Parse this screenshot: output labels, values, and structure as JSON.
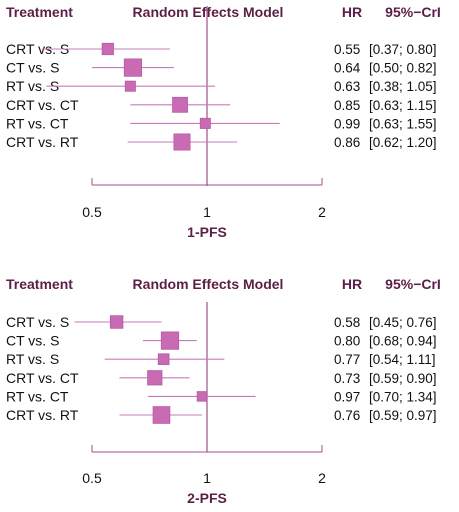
{
  "chart_data": [
    {
      "type": "forest",
      "header": {
        "treatment": "Treatment",
        "model": "Random Effects Model",
        "hr": "HR",
        "cri": "95%−CrI"
      },
      "xlabel": "1-PFS",
      "scale": "log",
      "xlim": [
        0.5,
        2
      ],
      "ticks": [
        0.5,
        1,
        2
      ],
      "tick_labels": [
        "0.5",
        "1",
        "2"
      ],
      "reference_line": 1,
      "colors": {
        "marker": "#b85aa3",
        "marker_fill": "#c96bb2",
        "line": "#c77bb8",
        "ref_line": "#a0508a",
        "header": "#5c1f45"
      },
      "rows": [
        {
          "label": "CRT vs. S",
          "hr": 0.55,
          "lo": 0.37,
          "hi": 0.8,
          "hr_text": "0.55",
          "cri_text": "[0.37; 0.80]",
          "weight": 0.45
        },
        {
          "label": "CT vs. S",
          "hr": 0.64,
          "lo": 0.5,
          "hi": 0.82,
          "hr_text": "0.64",
          "cri_text": "[0.50; 0.82]",
          "weight": 0.95
        },
        {
          "label": "RT vs. S",
          "hr": 0.63,
          "lo": 0.38,
          "hi": 1.05,
          "hr_text": "0.63",
          "cri_text": "[0.38; 1.05]",
          "weight": 0.35
        },
        {
          "label": "CRT vs. CT",
          "hr": 0.85,
          "lo": 0.63,
          "hi": 1.15,
          "hr_text": "0.85",
          "cri_text": "[0.63; 1.15]",
          "weight": 0.75
        },
        {
          "label": "RT vs. CT",
          "hr": 0.99,
          "lo": 0.63,
          "hi": 1.55,
          "hr_text": "0.99",
          "cri_text": "[0.63; 1.55]",
          "weight": 0.35
        },
        {
          "label": "CRT vs. RT",
          "hr": 0.86,
          "lo": 0.62,
          "hi": 1.2,
          "hr_text": "0.86",
          "cri_text": "[0.62; 1.20]",
          "weight": 0.85
        }
      ]
    },
    {
      "type": "forest",
      "header": {
        "treatment": "Treatment",
        "model": "Random Effects Model",
        "hr": "HR",
        "cri": "95%−CrI"
      },
      "xlabel": "2-PFS",
      "scale": "log",
      "xlim": [
        0.5,
        2
      ],
      "ticks": [
        0.5,
        1,
        2
      ],
      "tick_labels": [
        "0.5",
        "1",
        "2"
      ],
      "reference_line": 1,
      "colors": {
        "marker": "#b85aa3",
        "marker_fill": "#c96bb2",
        "line": "#c77bb8",
        "ref_line": "#a0508a",
        "header": "#5c1f45"
      },
      "rows": [
        {
          "label": "CRT vs. S",
          "hr": 0.58,
          "lo": 0.45,
          "hi": 0.76,
          "hr_text": "0.58",
          "cri_text": "[0.45; 0.76]",
          "weight": 0.55
        },
        {
          "label": "CT vs. S",
          "hr": 0.8,
          "lo": 0.68,
          "hi": 0.94,
          "hr_text": "0.80",
          "cri_text": "[0.68; 0.94]",
          "weight": 0.95
        },
        {
          "label": "RT vs. S",
          "hr": 0.77,
          "lo": 0.54,
          "hi": 1.11,
          "hr_text": "0.77",
          "cri_text": "[0.54; 1.11]",
          "weight": 0.4
        },
        {
          "label": "CRT vs. CT",
          "hr": 0.73,
          "lo": 0.59,
          "hi": 0.9,
          "hr_text": "0.73",
          "cri_text": "[0.59; 0.90]",
          "weight": 0.7
        },
        {
          "label": "RT vs. CT",
          "hr": 0.97,
          "lo": 0.7,
          "hi": 1.34,
          "hr_text": "0.97",
          "cri_text": "[0.70; 1.34]",
          "weight": 0.3
        },
        {
          "label": "CRT vs. RT",
          "hr": 0.76,
          "lo": 0.59,
          "hi": 0.97,
          "hr_text": "0.76",
          "cri_text": "[0.59; 0.97]",
          "weight": 0.9
        }
      ]
    }
  ]
}
